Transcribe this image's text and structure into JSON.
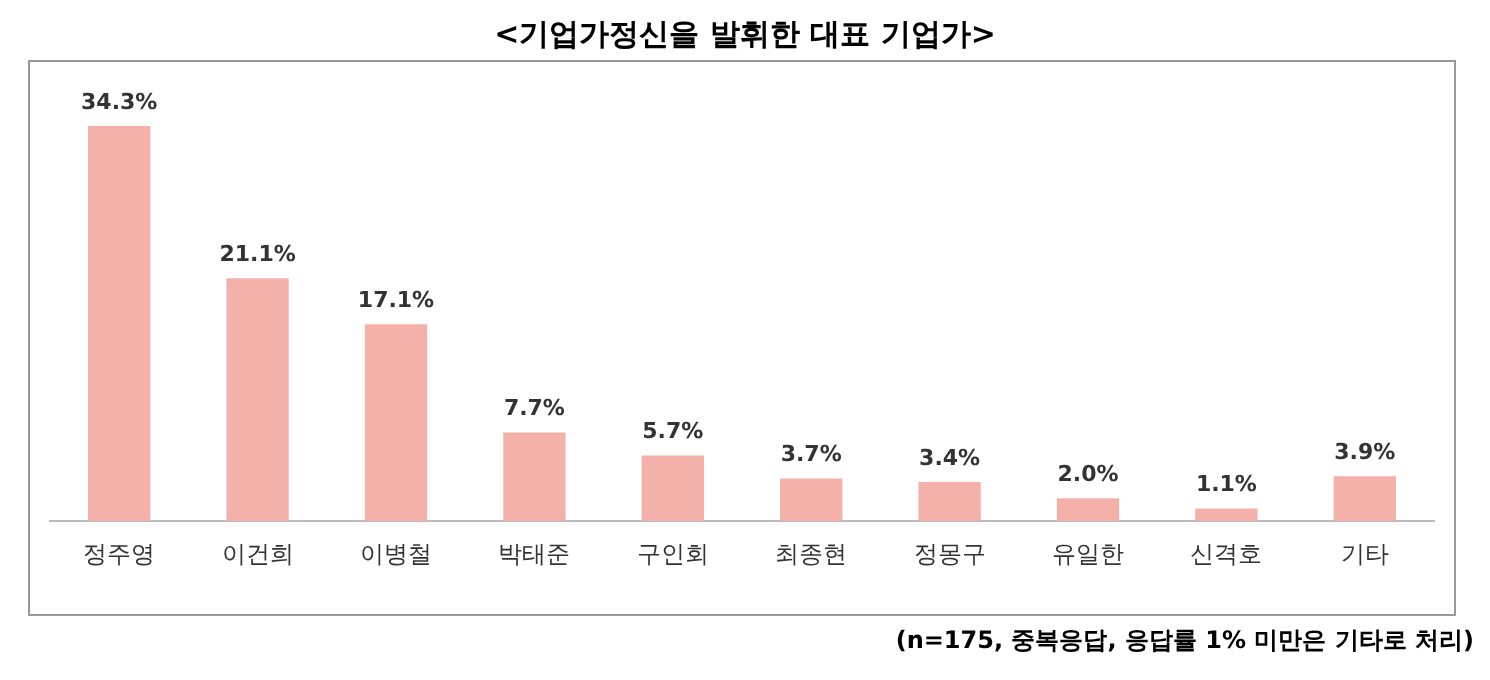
{
  "chart_data": {
    "type": "bar",
    "title": "<기업가정신을 발휘한 대표 기업가>",
    "categories": [
      "정주영",
      "이건희",
      "이병철",
      "박태준",
      "구인회",
      "최종현",
      "정몽구",
      "유일한",
      "신격호",
      "기타"
    ],
    "values": [
      34.3,
      21.1,
      17.1,
      7.7,
      5.7,
      3.7,
      3.4,
      2.0,
      1.1,
      3.9
    ],
    "value_labels": [
      "34.3%",
      "21.1%",
      "17.1%",
      "7.7%",
      "5.7%",
      "3.7%",
      "3.4%",
      "2.0%",
      "1.1%",
      "3.9%"
    ],
    "color": "#f4b1aa",
    "grid": false,
    "legend": false,
    "annotations": [
      "(n=175, 중복응답, 응답률 1% 미만은 기타로 처리)"
    ]
  }
}
